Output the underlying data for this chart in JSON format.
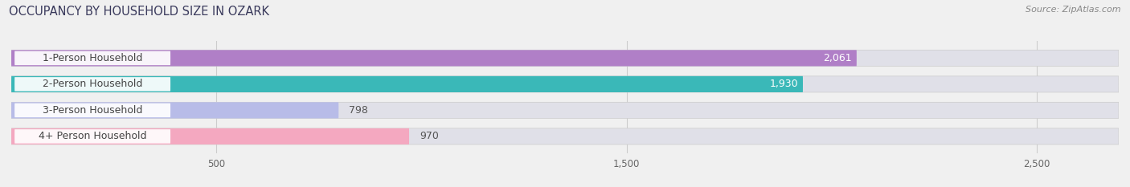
{
  "title": "OCCUPANCY BY HOUSEHOLD SIZE IN OZARK",
  "source": "Source: ZipAtlas.com",
  "categories": [
    "1-Person Household",
    "2-Person Household",
    "3-Person Household",
    "4+ Person Household"
  ],
  "values": [
    2061,
    1930,
    798,
    970
  ],
  "colors": [
    "#b07fc7",
    "#3ab8b8",
    "#b8bce8",
    "#f4a8c0"
  ],
  "bar_height": 0.62,
  "xlim": [
    0,
    2700
  ],
  "xticks": [
    500,
    1500,
    2500
  ],
  "background_color": "#f0f0f0",
  "bar_bg_color": "#e0e0e8",
  "title_fontsize": 10.5,
  "source_fontsize": 8,
  "label_fontsize": 9,
  "value_fontsize": 9,
  "label_bg_color": "#ffffff",
  "label_text_color": "#444444",
  "value_white_threshold": 1200
}
